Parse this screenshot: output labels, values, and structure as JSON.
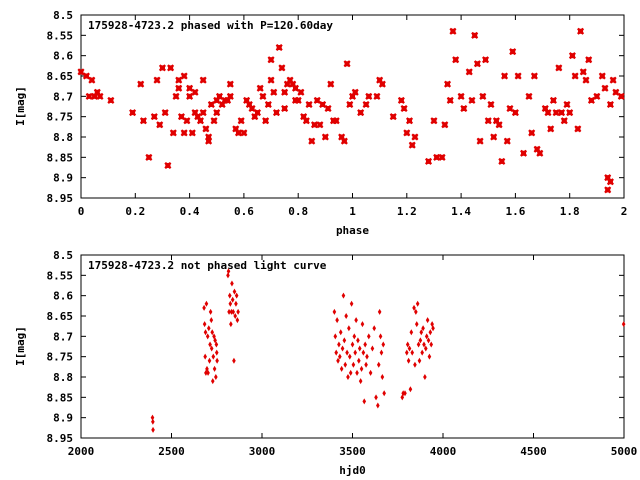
{
  "chart_data": [
    {
      "type": "scatter",
      "title": "175928-4723.2 phased with P=120.60day",
      "xlabel": "phase",
      "ylabel": "I[mag]",
      "xlim": [
        0,
        2
      ],
      "ylim": [
        8.95,
        8.5
      ],
      "y_inverted": true,
      "grid": false,
      "color": "#e00000",
      "xticks": [
        "0",
        "0.2",
        "0.4",
        "0.6",
        "0.8",
        "1",
        "1.2",
        "1.4",
        "1.6",
        "1.8",
        "2"
      ],
      "xtick_values": [
        0,
        0.2,
        0.4,
        0.6,
        0.8,
        1.0,
        1.2,
        1.4,
        1.6,
        1.8,
        2.0
      ],
      "yticks": [
        "8.5",
        "8.55",
        "8.6",
        "8.65",
        "8.7",
        "8.75",
        "8.8",
        "8.85",
        "8.9",
        "8.95"
      ],
      "ytick_values": [
        8.5,
        8.55,
        8.6,
        8.65,
        8.7,
        8.75,
        8.8,
        8.85,
        8.9,
        8.95
      ],
      "points": [
        [
          0.0,
          8.64
        ],
        [
          0.02,
          8.65
        ],
        [
          0.03,
          8.7
        ],
        [
          0.04,
          8.66
        ],
        [
          0.05,
          8.7
        ],
        [
          0.06,
          8.69
        ],
        [
          0.07,
          8.7
        ],
        [
          0.11,
          8.71
        ],
        [
          0.19,
          8.74
        ],
        [
          0.22,
          8.67
        ],
        [
          0.23,
          8.76
        ],
        [
          0.25,
          8.85
        ],
        [
          0.27,
          8.75
        ],
        [
          0.28,
          8.66
        ],
        [
          0.29,
          8.77
        ],
        [
          0.3,
          8.63
        ],
        [
          0.31,
          8.74
        ],
        [
          0.32,
          8.87
        ],
        [
          0.33,
          8.63
        ],
        [
          0.34,
          8.79
        ],
        [
          0.35,
          8.7
        ],
        [
          0.36,
          8.66
        ],
        [
          0.36,
          8.68
        ],
        [
          0.37,
          8.75
        ],
        [
          0.38,
          8.65
        ],
        [
          0.38,
          8.79
        ],
        [
          0.39,
          8.76
        ],
        [
          0.4,
          8.68
        ],
        [
          0.4,
          8.7
        ],
        [
          0.41,
          8.79
        ],
        [
          0.42,
          8.69
        ],
        [
          0.42,
          8.74
        ],
        [
          0.43,
          8.75
        ],
        [
          0.44,
          8.76
        ],
        [
          0.45,
          8.74
        ],
        [
          0.45,
          8.66
        ],
        [
          0.46,
          8.78
        ],
        [
          0.47,
          8.81
        ],
        [
          0.47,
          8.8
        ],
        [
          0.48,
          8.72
        ],
        [
          0.49,
          8.76
        ],
        [
          0.5,
          8.71
        ],
        [
          0.5,
          8.74
        ],
        [
          0.51,
          8.7
        ],
        [
          0.52,
          8.72
        ],
        [
          0.53,
          8.71
        ],
        [
          0.54,
          8.71
        ],
        [
          0.55,
          8.67
        ],
        [
          0.55,
          8.7
        ],
        [
          0.57,
          8.78
        ],
        [
          0.58,
          8.79
        ],
        [
          0.59,
          8.76
        ],
        [
          0.6,
          8.79
        ],
        [
          0.61,
          8.71
        ],
        [
          0.62,
          8.72
        ],
        [
          0.63,
          8.73
        ],
        [
          0.64,
          8.75
        ],
        [
          0.65,
          8.74
        ],
        [
          0.66,
          8.68
        ],
        [
          0.67,
          8.7
        ],
        [
          0.68,
          8.76
        ],
        [
          0.69,
          8.72
        ],
        [
          0.7,
          8.66
        ],
        [
          0.7,
          8.61
        ],
        [
          0.71,
          8.69
        ],
        [
          0.72,
          8.74
        ],
        [
          0.73,
          8.58
        ],
        [
          0.74,
          8.63
        ],
        [
          0.75,
          8.69
        ],
        [
          0.75,
          8.73
        ],
        [
          0.76,
          8.67
        ],
        [
          0.77,
          8.66
        ],
        [
          0.78,
          8.67
        ],
        [
          0.79,
          8.68
        ],
        [
          0.79,
          8.71
        ],
        [
          0.8,
          8.71
        ],
        [
          0.81,
          8.69
        ],
        [
          0.82,
          8.75
        ],
        [
          0.83,
          8.76
        ],
        [
          0.84,
          8.72
        ],
        [
          0.85,
          8.81
        ],
        [
          0.86,
          8.77
        ],
        [
          0.87,
          8.71
        ],
        [
          0.88,
          8.77
        ],
        [
          0.89,
          8.72
        ],
        [
          0.9,
          8.8
        ],
        [
          0.91,
          8.73
        ],
        [
          0.92,
          8.67
        ],
        [
          0.93,
          8.76
        ],
        [
          0.94,
          8.76
        ],
        [
          0.96,
          8.8
        ],
        [
          0.97,
          8.81
        ],
        [
          0.98,
          8.62
        ],
        [
          0.99,
          8.72
        ],
        [
          1.0,
          8.7
        ],
        [
          1.01,
          8.69
        ],
        [
          1.03,
          8.74
        ],
        [
          1.05,
          8.72
        ],
        [
          1.06,
          8.7
        ],
        [
          1.09,
          8.7
        ],
        [
          1.1,
          8.66
        ],
        [
          1.11,
          8.67
        ],
        [
          1.15,
          8.75
        ],
        [
          1.18,
          8.71
        ],
        [
          1.19,
          8.73
        ],
        [
          1.2,
          8.79
        ],
        [
          1.21,
          8.76
        ],
        [
          1.22,
          8.82
        ],
        [
          1.23,
          8.8
        ],
        [
          1.28,
          8.86
        ],
        [
          1.3,
          8.76
        ],
        [
          1.31,
          8.85
        ],
        [
          1.33,
          8.85
        ],
        [
          1.34,
          8.77
        ],
        [
          1.35,
          8.67
        ],
        [
          1.36,
          8.71
        ],
        [
          1.37,
          8.54
        ],
        [
          1.38,
          8.61
        ],
        [
          1.4,
          8.7
        ],
        [
          1.41,
          8.73
        ],
        [
          1.43,
          8.64
        ],
        [
          1.44,
          8.71
        ],
        [
          1.45,
          8.55
        ],
        [
          1.46,
          8.62
        ],
        [
          1.47,
          8.81
        ],
        [
          1.48,
          8.7
        ],
        [
          1.49,
          8.61
        ],
        [
          1.5,
          8.76
        ],
        [
          1.51,
          8.72
        ],
        [
          1.52,
          8.8
        ],
        [
          1.53,
          8.76
        ],
        [
          1.54,
          8.77
        ],
        [
          1.55,
          8.86
        ],
        [
          1.56,
          8.65
        ],
        [
          1.57,
          8.81
        ],
        [
          1.58,
          8.73
        ],
        [
          1.59,
          8.59
        ],
        [
          1.6,
          8.74
        ],
        [
          1.61,
          8.65
        ],
        [
          1.63,
          8.84
        ],
        [
          1.65,
          8.7
        ],
        [
          1.66,
          8.79
        ],
        [
          1.67,
          8.65
        ],
        [
          1.68,
          8.83
        ],
        [
          1.69,
          8.84
        ],
        [
          1.71,
          8.73
        ],
        [
          1.72,
          8.74
        ],
        [
          1.73,
          8.78
        ],
        [
          1.74,
          8.71
        ],
        [
          1.75,
          8.74
        ],
        [
          1.76,
          8.63
        ],
        [
          1.77,
          8.74
        ],
        [
          1.78,
          8.76
        ],
        [
          1.79,
          8.72
        ],
        [
          1.8,
          8.74
        ],
        [
          1.81,
          8.6
        ],
        [
          1.82,
          8.65
        ],
        [
          1.83,
          8.78
        ],
        [
          1.84,
          8.54
        ],
        [
          1.85,
          8.64
        ],
        [
          1.86,
          8.66
        ],
        [
          1.87,
          8.61
        ],
        [
          1.88,
          8.71
        ],
        [
          1.9,
          8.7
        ],
        [
          1.92,
          8.65
        ],
        [
          1.93,
          8.68
        ],
        [
          1.94,
          8.9
        ],
        [
          1.94,
          8.93
        ],
        [
          1.95,
          8.91
        ],
        [
          1.95,
          8.72
        ],
        [
          1.96,
          8.66
        ],
        [
          1.97,
          8.69
        ],
        [
          1.99,
          8.7
        ]
      ]
    },
    {
      "type": "scatter",
      "title": "175928-4723.2 not phased light curve",
      "xlabel": "hjd0",
      "ylabel": "I[mag]",
      "xlim": [
        2000,
        5000
      ],
      "ylim": [
        8.95,
        8.5
      ],
      "y_inverted": true,
      "grid": false,
      "color": "#e00000",
      "xticks": [
        "2000",
        "2500",
        "3000",
        "3500",
        "4000",
        "4500",
        "5000"
      ],
      "xtick_values": [
        2000,
        2500,
        3000,
        3500,
        4000,
        4500,
        5000
      ],
      "yticks": [
        "8.5",
        "8.55",
        "8.6",
        "8.65",
        "8.7",
        "8.75",
        "8.8",
        "8.85",
        "8.9",
        "8.95"
      ],
      "ytick_values": [
        8.5,
        8.55,
        8.6,
        8.65,
        8.7,
        8.75,
        8.8,
        8.85,
        8.9,
        8.95
      ],
      "points": [
        [
          2395,
          8.9
        ],
        [
          2397,
          8.91
        ],
        [
          2398,
          8.93
        ],
        [
          2680,
          8.63
        ],
        [
          2683,
          8.67
        ],
        [
          2686,
          8.75
        ],
        [
          2688,
          8.69
        ],
        [
          2690,
          8.79
        ],
        [
          2693,
          8.62
        ],
        [
          2696,
          8.78
        ],
        [
          2700,
          8.7
        ],
        [
          2702,
          8.79
        ],
        [
          2706,
          8.68
        ],
        [
          2710,
          8.76
        ],
        [
          2713,
          8.72
        ],
        [
          2716,
          8.64
        ],
        [
          2720,
          8.66
        ],
        [
          2722,
          8.73
        ],
        [
          2725,
          8.69
        ],
        [
          2728,
          8.81
        ],
        [
          2731,
          8.75
        ],
        [
          2735,
          8.7
        ],
        [
          2738,
          8.78
        ],
        [
          2741,
          8.71
        ],
        [
          2745,
          8.8
        ],
        [
          2748,
          8.72
        ],
        [
          2750,
          8.74
        ],
        [
          2752,
          8.76
        ],
        [
          2812,
          8.55
        ],
        [
          2815,
          8.54
        ],
        [
          2818,
          8.64
        ],
        [
          2822,
          8.6
        ],
        [
          2825,
          8.62
        ],
        [
          2828,
          8.67
        ],
        [
          2831,
          8.64
        ],
        [
          2834,
          8.57
        ],
        [
          2838,
          8.61
        ],
        [
          2841,
          8.64
        ],
        [
          2845,
          8.76
        ],
        [
          2848,
          8.59
        ],
        [
          2852,
          8.65
        ],
        [
          2856,
          8.62
        ],
        [
          2860,
          8.6
        ],
        [
          2864,
          8.66
        ],
        [
          2868,
          8.64
        ],
        [
          3400,
          8.64
        ],
        [
          3405,
          8.7
        ],
        [
          3410,
          8.74
        ],
        [
          3415,
          8.66
        ],
        [
          3420,
          8.76
        ],
        [
          3425,
          8.72
        ],
        [
          3430,
          8.75
        ],
        [
          3435,
          8.69
        ],
        [
          3440,
          8.78
        ],
        [
          3445,
          8.73
        ],
        [
          3450,
          8.6
        ],
        [
          3455,
          8.71
        ],
        [
          3460,
          8.77
        ],
        [
          3465,
          8.65
        ],
        [
          3470,
          8.74
        ],
        [
          3475,
          8.8
        ],
        [
          3480,
          8.68
        ],
        [
          3485,
          8.75
        ],
        [
          3490,
          8.79
        ],
        [
          3495,
          8.62
        ],
        [
          3500,
          8.72
        ],
        [
          3505,
          8.77
        ],
        [
          3510,
          8.7
        ],
        [
          3515,
          8.74
        ],
        [
          3520,
          8.66
        ],
        [
          3525,
          8.79
        ],
        [
          3530,
          8.71
        ],
        [
          3535,
          8.76
        ],
        [
          3540,
          8.73
        ],
        [
          3545,
          8.81
        ],
        [
          3550,
          8.78
        ],
        [
          3555,
          8.67
        ],
        [
          3560,
          8.74
        ],
        [
          3565,
          8.86
        ],
        [
          3570,
          8.72
        ],
        [
          3575,
          8.77
        ],
        [
          3580,
          8.75
        ],
        [
          3590,
          8.7
        ],
        [
          3600,
          8.79
        ],
        [
          3610,
          8.73
        ],
        [
          3620,
          8.68
        ],
        [
          3630,
          8.85
        ],
        [
          3640,
          8.87
        ],
        [
          3645,
          8.77
        ],
        [
          3650,
          8.64
        ],
        [
          3655,
          8.7
        ],
        [
          3660,
          8.74
        ],
        [
          3665,
          8.8
        ],
        [
          3670,
          8.72
        ],
        [
          3675,
          8.84
        ],
        [
          3775,
          8.85
        ],
        [
          3780,
          8.84
        ],
        [
          3790,
          8.84
        ],
        [
          3800,
          8.74
        ],
        [
          3805,
          8.72
        ],
        [
          3810,
          8.76
        ],
        [
          3815,
          8.73
        ],
        [
          3820,
          8.83
        ],
        [
          3825,
          8.69
        ],
        [
          3830,
          8.74
        ],
        [
          3840,
          8.63
        ],
        [
          3845,
          8.77
        ],
        [
          3850,
          8.64
        ],
        [
          3855,
          8.67
        ],
        [
          3860,
          8.62
        ],
        [
          3865,
          8.72
        ],
        [
          3870,
          8.76
        ],
        [
          3875,
          8.71
        ],
        [
          3880,
          8.69
        ],
        [
          3885,
          8.74
        ],
        [
          3890,
          8.68
        ],
        [
          3895,
          8.72
        ],
        [
          3900,
          8.8
        ],
        [
          3905,
          8.73
        ],
        [
          3910,
          8.7
        ],
        [
          3915,
          8.66
        ],
        [
          3920,
          8.71
        ],
        [
          3925,
          8.75
        ],
        [
          3930,
          8.69
        ],
        [
          3935,
          8.72
        ],
        [
          3940,
          8.67
        ],
        [
          3945,
          8.68
        ],
        [
          4998,
          8.67
        ]
      ]
    }
  ]
}
